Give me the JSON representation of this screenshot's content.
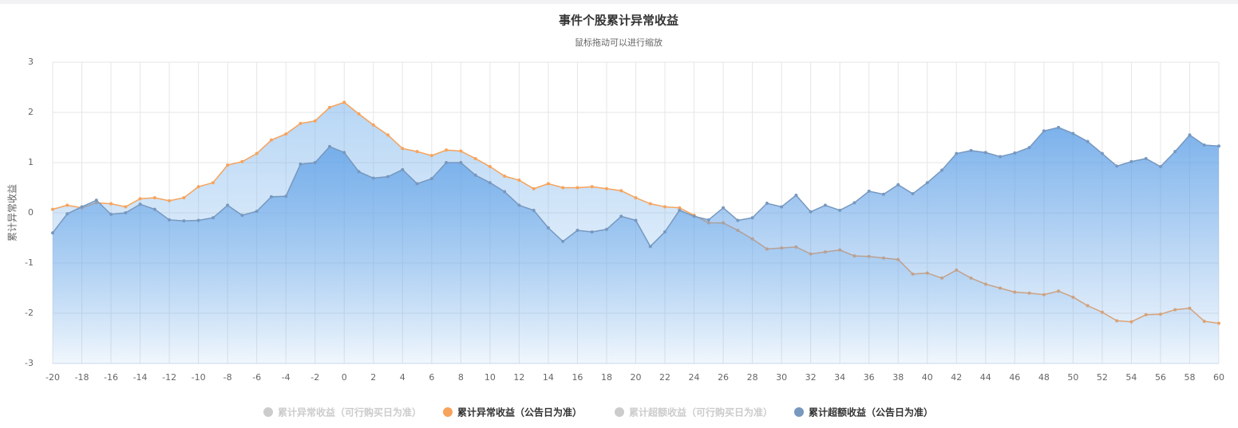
{
  "chart_data": {
    "type": "area",
    "title": "事件个股累计异常收益",
    "subtitle": "鼠标拖动可以进行缩放",
    "y_label": "累计异常收益",
    "x": [
      -20,
      -19,
      -18,
      -17,
      -16,
      -15,
      -14,
      -13,
      -12,
      -11,
      -10,
      -9,
      -8,
      -7,
      -6,
      -5,
      -4,
      -3,
      -2,
      -1,
      0,
      1,
      2,
      3,
      4,
      5,
      6,
      7,
      8,
      9,
      10,
      11,
      12,
      13,
      14,
      15,
      16,
      17,
      18,
      19,
      20,
      21,
      22,
      23,
      24,
      25,
      26,
      27,
      28,
      29,
      30,
      31,
      32,
      33,
      34,
      35,
      36,
      37,
      38,
      39,
      40,
      41,
      42,
      43,
      44,
      45,
      46,
      47,
      48,
      49,
      50,
      51,
      52,
      53,
      54,
      55,
      56,
      57,
      58,
      59,
      60
    ],
    "xlim": [
      -20,
      60
    ],
    "xticks": [
      -20,
      -18,
      -16,
      -14,
      -12,
      -10,
      -8,
      -6,
      -4,
      -2,
      0,
      2,
      4,
      6,
      8,
      10,
      12,
      14,
      16,
      18,
      20,
      22,
      24,
      26,
      28,
      30,
      32,
      34,
      36,
      38,
      40,
      42,
      44,
      46,
      48,
      50,
      52,
      54,
      56,
      58,
      60
    ],
    "ylim": [
      -3,
      3
    ],
    "yticks": [
      -3,
      -2,
      -1,
      0,
      1,
      2,
      3
    ],
    "grid": true,
    "series": [
      {
        "name": "累计异常收益（可行购买日为准）",
        "visible": false
      },
      {
        "name": "累计异常收益（公告日为准）",
        "color": "#f7a35c",
        "visible": true,
        "values": [
          0.07,
          0.15,
          0.1,
          0.2,
          0.18,
          0.12,
          0.28,
          0.3,
          0.24,
          0.3,
          0.52,
          0.6,
          0.95,
          1.02,
          1.18,
          1.45,
          1.57,
          1.78,
          1.83,
          2.1,
          2.2,
          1.97,
          1.75,
          1.55,
          1.28,
          1.22,
          1.14,
          1.25,
          1.23,
          1.08,
          0.92,
          0.73,
          0.65,
          0.48,
          0.58,
          0.5,
          0.5,
          0.52,
          0.48,
          0.44,
          0.3,
          0.18,
          0.12,
          0.1,
          -0.05,
          -0.2,
          -0.2,
          -0.35,
          -0.52,
          -0.72,
          -0.7,
          -0.68,
          -0.82,
          -0.78,
          -0.74,
          -0.86,
          -0.87,
          -0.9,
          -0.93,
          -1.22,
          -1.2,
          -1.3,
          -1.14,
          -1.3,
          -1.42,
          -1.5,
          -1.58,
          -1.6,
          -1.63,
          -1.56,
          -1.68,
          -1.85,
          -1.98,
          -2.15,
          -2.17,
          -2.03,
          -2.02,
          -1.93,
          -1.9,
          -2.16,
          -2.2
        ]
      },
      {
        "name": "累计超额收益（可行购买日为准）",
        "visible": false
      },
      {
        "name": "累计超额收益（公告日为准）",
        "color": "#7798bf",
        "visible": true,
        "values": [
          -0.4,
          -0.02,
          0.12,
          0.25,
          -0.03,
          0,
          0.17,
          0.07,
          -0.14,
          -0.16,
          -0.15,
          -0.1,
          0.15,
          -0.05,
          0.03,
          0.32,
          0.33,
          0.97,
          1.0,
          1.32,
          1.2,
          0.82,
          0.69,
          0.72,
          0.86,
          0.58,
          0.68,
          1.0,
          1.0,
          0.75,
          0.6,
          0.42,
          0.15,
          0.05,
          -0.3,
          -0.57,
          -0.35,
          -0.38,
          -0.33,
          -0.07,
          -0.15,
          -0.67,
          -0.38,
          0.05,
          -0.07,
          -0.14,
          0.1,
          -0.15,
          -0.1,
          0.19,
          0.12,
          0.35,
          0.02,
          0.15,
          0.05,
          0.2,
          0.43,
          0.37,
          0.56,
          0.38,
          0.6,
          0.85,
          1.18,
          1.24,
          1.2,
          1.12,
          1.19,
          1.3,
          1.63,
          1.7,
          1.58,
          1.42,
          1.18,
          0.93,
          1.02,
          1.08,
          0.92,
          1.22,
          1.55,
          1.35,
          1.33
        ]
      }
    ]
  }
}
